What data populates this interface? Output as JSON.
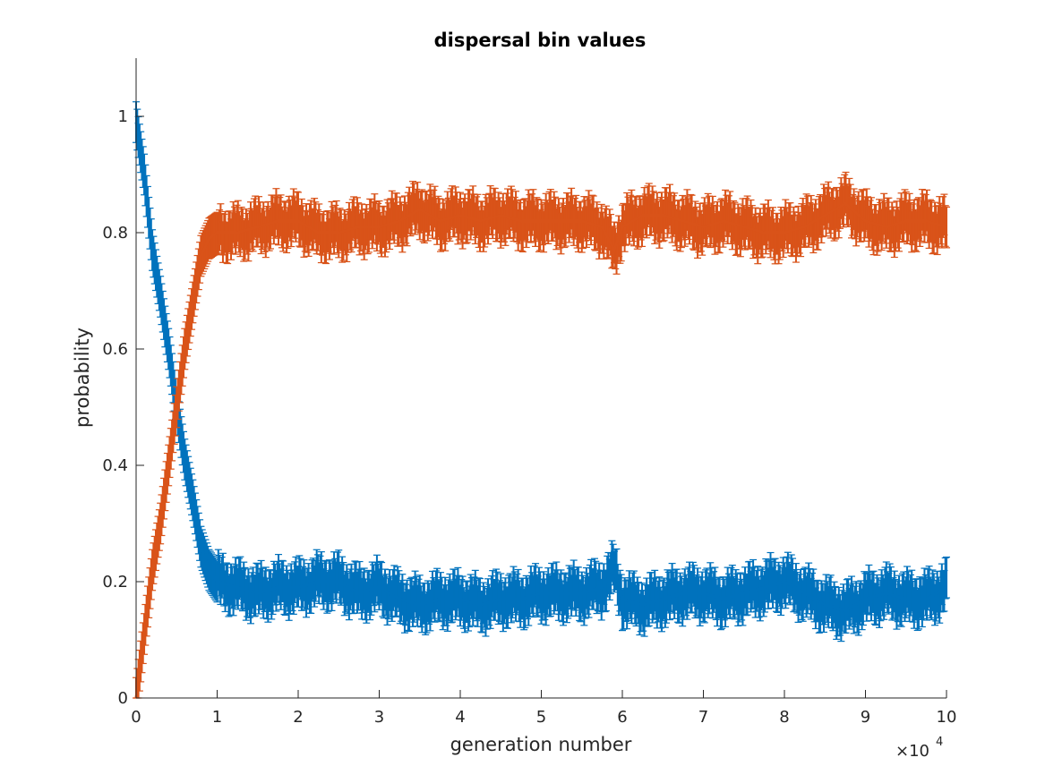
{
  "chart_data": {
    "type": "line",
    "title": "dispersal bin values",
    "xlabel": "generation number",
    "ylabel": "probability",
    "x_multiplier_label": "×10",
    "x_multiplier_exponent": "4",
    "xlim": [
      0,
      10
    ],
    "ylim": [
      0,
      1.1
    ],
    "x_ticks": [
      0,
      1,
      2,
      3,
      4,
      5,
      6,
      7,
      8,
      9,
      10
    ],
    "x_tick_labels": [
      "0",
      "1",
      "2",
      "3",
      "4",
      "5",
      "6",
      "7",
      "8",
      "9",
      "10"
    ],
    "y_ticks": [
      0,
      0.2,
      0.4,
      0.6,
      0.8,
      1
    ],
    "y_tick_labels": [
      "0",
      "0.2",
      "0.4",
      "0.6",
      "0.8",
      "1"
    ],
    "grid": false,
    "legend": "none",
    "error_bars": true,
    "error_half_width": 0.035,
    "x": [
      0,
      0.1,
      0.2,
      0.3,
      0.4,
      0.5,
      0.6,
      0.7,
      0.8,
      0.9,
      1,
      1.25,
      1.5,
      1.75,
      2,
      2.25,
      2.5,
      2.75,
      3,
      3.25,
      3.5,
      3.75,
      4,
      4.25,
      4.5,
      4.75,
      5,
      5.25,
      5.5,
      5.75,
      5.9,
      6,
      6.25,
      6.5,
      6.75,
      7,
      7.25,
      7.5,
      7.75,
      8,
      8.25,
      8.5,
      8.75,
      9,
      9.25,
      9.5,
      9.75,
      10
    ],
    "series": [
      {
        "color": "#0072BD",
        "values": [
          0.99,
          0.9,
          0.77,
          0.69,
          0.6,
          0.5,
          0.41,
          0.34,
          0.26,
          0.22,
          0.2,
          0.19,
          0.18,
          0.19,
          0.19,
          0.2,
          0.2,
          0.18,
          0.19,
          0.17,
          0.16,
          0.17,
          0.17,
          0.16,
          0.17,
          0.17,
          0.18,
          0.18,
          0.18,
          0.19,
          0.22,
          0.17,
          0.16,
          0.17,
          0.18,
          0.18,
          0.17,
          0.18,
          0.19,
          0.2,
          0.18,
          0.16,
          0.15,
          0.17,
          0.18,
          0.17,
          0.17,
          0.19
        ]
      },
      {
        "color": "#D95319",
        "values": [
          0.0,
          0.11,
          0.22,
          0.3,
          0.4,
          0.5,
          0.6,
          0.68,
          0.76,
          0.79,
          0.8,
          0.8,
          0.81,
          0.82,
          0.82,
          0.8,
          0.8,
          0.81,
          0.81,
          0.82,
          0.84,
          0.82,
          0.83,
          0.82,
          0.83,
          0.82,
          0.82,
          0.82,
          0.82,
          0.81,
          0.77,
          0.81,
          0.83,
          0.83,
          0.82,
          0.81,
          0.82,
          0.81,
          0.8,
          0.8,
          0.81,
          0.83,
          0.85,
          0.82,
          0.81,
          0.82,
          0.82,
          0.81
        ]
      }
    ]
  }
}
